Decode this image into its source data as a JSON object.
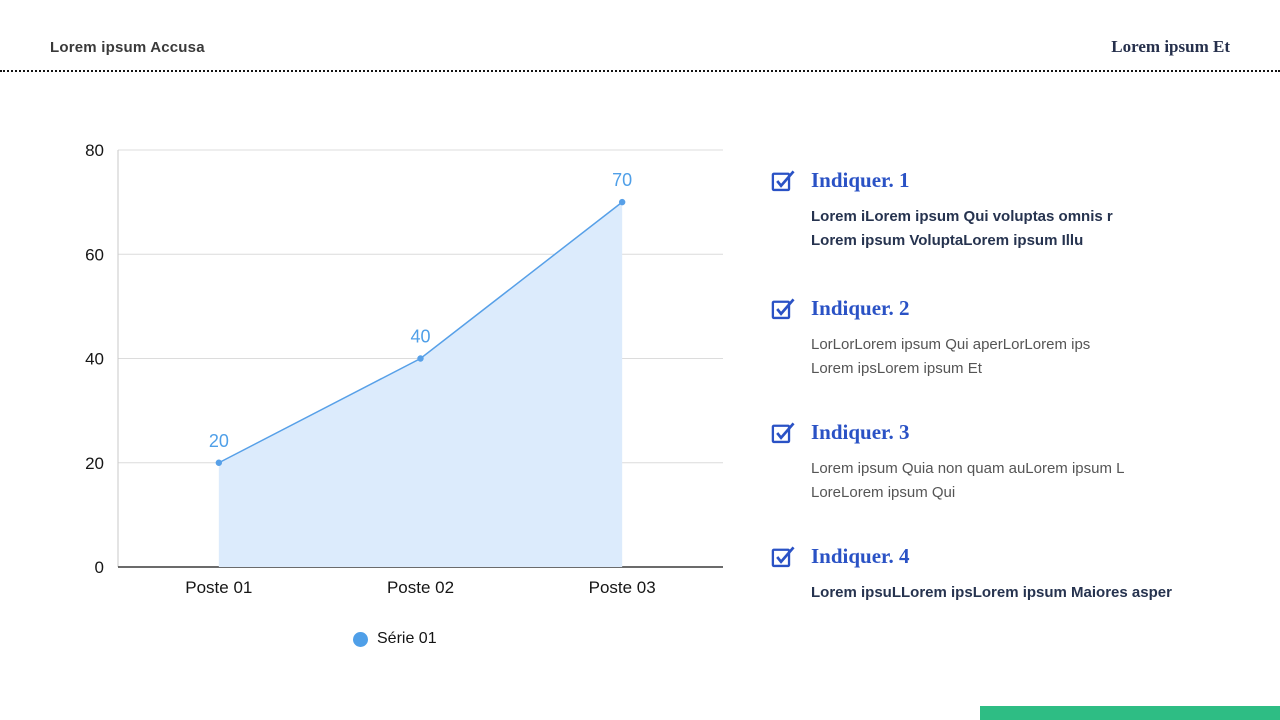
{
  "header": {
    "left_title": "Lorem ipsum Accusa",
    "right_title": "Lorem ipsum Et"
  },
  "chart_data": {
    "type": "area",
    "title": "",
    "categories": [
      "Poste 01",
      "Poste 02",
      "Poste 03"
    ],
    "series": [
      {
        "name": "Série 01",
        "values": [
          20,
          40,
          70
        ]
      }
    ],
    "data_labels": [
      "20",
      "40",
      "70"
    ],
    "ylim": [
      0,
      80
    ],
    "y_ticks": [
      0,
      20,
      40,
      60,
      80
    ],
    "grid": true,
    "legend_position": "bottom",
    "colors": {
      "line": "#57A0E8",
      "fill": "#DCEBFC",
      "value_label": "#4F9FE8",
      "gridline": "#DCDCDC",
      "axis": "#3A3A3A",
      "tick_text": "#161616"
    }
  },
  "legend": {
    "series_label": "Série 01"
  },
  "items": [
    {
      "title": "Indiquer. 1",
      "body": "Lorem iLorem ipsum Qui voluptas omnis r\nLorem ipsum VoluptaLorem ipsum Illu",
      "emphasis": "bold"
    },
    {
      "title": "Indiquer. 2",
      "body": "LorLorLorem ipsum Qui aperLorLorem ips\nLorem ipsLorem ipsum Et",
      "emphasis": "normal"
    },
    {
      "title": "Indiquer. 3",
      "body": "Lorem ipsum Quia non quam auLorem ipsum L\nLoreLorem ipsum Qui",
      "emphasis": "normal"
    },
    {
      "title": "Indiquer. 4",
      "body": "Lorem ipsuLLorem ipsLorem ipsum Maiores asper",
      "emphasis": "bold"
    }
  ],
  "footer": {
    "accent_bar_color": "#2EBD84"
  }
}
